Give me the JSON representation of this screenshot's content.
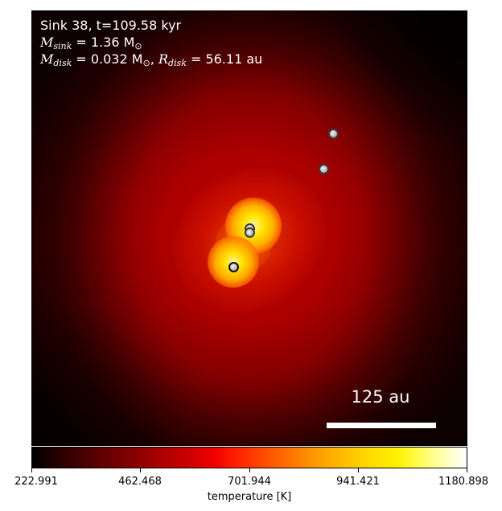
{
  "annotation": {
    "title": "Sink 38, t=109.58 kyr",
    "msink_label": "M",
    "msink_sub": "sink",
    "msink_value": " = 1.36 M",
    "msink_unit_sub": "⊙",
    "mdisk_label": "M",
    "mdisk_sub": "disk",
    "mdisk_value": " = 0.032 M",
    "mdisk_unit_sub": "⊙",
    "rdisk_sep": ", ",
    "rdisk_label": "R",
    "rdisk_sub": "disk",
    "rdisk_value": " = 56.11 au"
  },
  "scalebar": {
    "label": "125 au"
  },
  "colorbar": {
    "title": "temperature [K]",
    "ticks": [
      "222.991",
      "462.468",
      "701.944",
      "941.421",
      "1180.898"
    ],
    "colormap": "hot"
  }
}
